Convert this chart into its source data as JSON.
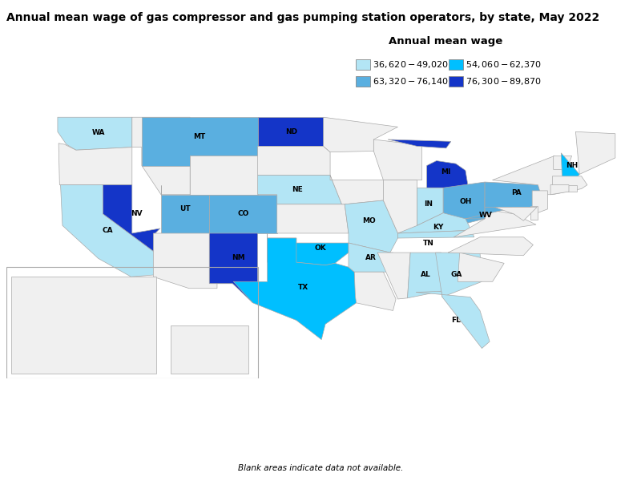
{
  "title": "Annual mean wage of gas compressor and gas pumping station operators, by state, May 2022",
  "legend_title": "Annual mean wage",
  "legend_entries": [
    {
      "label": "$36,620 - $49,020",
      "color": "#b3e5f5"
    },
    {
      "label": "$63,320 - $76,140",
      "color": "#5aafe0"
    },
    {
      "label": "$54,060 - $62,370",
      "color": "#00bfff"
    },
    {
      "label": "$76,300 - $89,870",
      "color": "#1435c8"
    }
  ],
  "state_colors": {
    "WA": "#b3e5f5",
    "CA": "#b3e5f5",
    "MT": "#5aafe0",
    "UT": "#5aafe0",
    "CO": "#5aafe0",
    "NV": "#1435c8",
    "NM": "#1435c8",
    "ND": "#1435c8",
    "NE": "#b3e5f5",
    "TX": "#00bfff",
    "OK": "#00bfff",
    "AR": "#b3e5f5",
    "MO": "#b3e5f5",
    "MI": "#1435c8",
    "IN": "#b3e5f5",
    "OH": "#5aafe0",
    "PA": "#5aafe0",
    "WV": "#5aafe0",
    "KY": "#b3e5f5",
    "TN": "#b3e5f5",
    "AL": "#b3e5f5",
    "GA": "#b3e5f5",
    "FL": "#b3e5f5",
    "NH": "#00bfff"
  },
  "no_data_color": "#f0f0f0",
  "border_color": "#aaaaaa",
  "background_color": "#ffffff",
  "title_fontsize": 10,
  "label_fontsize": 6.5,
  "legend_fontsize": 8.5,
  "footnote": "Blank areas indicate data not available.",
  "figsize": [
    8.0,
    6.0
  ],
  "dpi": 100
}
